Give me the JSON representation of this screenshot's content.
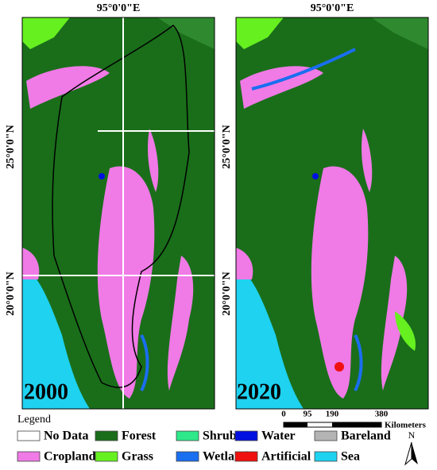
{
  "panels": [
    {
      "year": "2000",
      "longitude_label": "95°0'0\"E",
      "latitude_labels": [
        "25°0'0\"N",
        "20°0'0\"N"
      ]
    },
    {
      "year": "2020",
      "longitude_label": "95°0'0\"E",
      "latitude_labels": [
        "25°0'0\"N",
        "20°0'0\"N"
      ]
    }
  ],
  "legend": {
    "title": "Legend",
    "items": [
      {
        "label": "No Data",
        "color": "#ffffff"
      },
      {
        "label": "Forest",
        "color": "#1a6e1a"
      },
      {
        "label": "Shrub",
        "color": "#2ee88a"
      },
      {
        "label": "Water",
        "color": "#0010e0"
      },
      {
        "label": "Bareland",
        "color": "#b4b4b4"
      },
      {
        "label": "Cropland",
        "color": "#f07ae6"
      },
      {
        "label": "Grass",
        "color": "#66f020"
      },
      {
        "label": "Wetland",
        "color": "#1a6ef0"
      },
      {
        "label": "Artificial",
        "color": "#f01010"
      },
      {
        "label": "Sea",
        "color": "#1ed2f0"
      }
    ]
  },
  "scale_bar": {
    "ticks": [
      0,
      95,
      190,
      380
    ],
    "unit": "Kilometers"
  },
  "north_arrow": "N"
}
